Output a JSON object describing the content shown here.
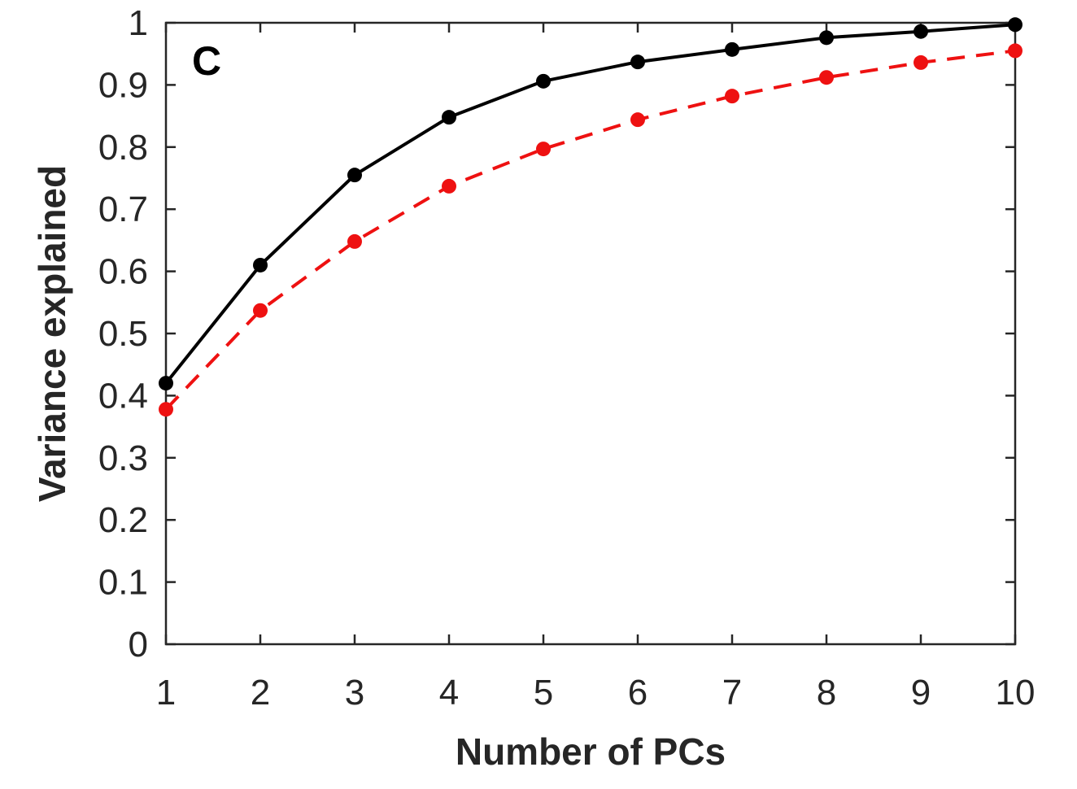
{
  "chart_data": {
    "type": "line",
    "panel_label": "C",
    "xlabel": "Number of PCs",
    "ylabel": "Variance explained",
    "x": [
      1,
      2,
      3,
      4,
      5,
      6,
      7,
      8,
      9,
      10
    ],
    "xlim": [
      1,
      10
    ],
    "ylim": [
      0,
      1
    ],
    "x_ticks": [
      1,
      2,
      3,
      4,
      5,
      6,
      7,
      8,
      9,
      10
    ],
    "y_ticks": [
      0,
      0.1,
      0.2,
      0.3,
      0.4,
      0.5,
      0.6,
      0.7,
      0.8,
      0.9,
      1
    ],
    "y_tick_labels": [
      "0",
      "0.1",
      "0.2",
      "0.3",
      "0.4",
      "0.5",
      "0.6",
      "0.7",
      "0.8",
      "0.9",
      "1"
    ],
    "grid": false,
    "series": [
      {
        "values": [
          0.42,
          0.61,
          0.755,
          0.848,
          0.906,
          0.937,
          0.957,
          0.976,
          0.986,
          0.997
        ],
        "color": "#000000",
        "line_style": "solid",
        "marker": "circle"
      },
      {
        "values": [
          0.378,
          0.537,
          0.648,
          0.737,
          0.797,
          0.844,
          0.882,
          0.912,
          0.936,
          0.955
        ],
        "color": "#ee1111",
        "line_style": "dashed",
        "marker": "circle"
      }
    ]
  }
}
